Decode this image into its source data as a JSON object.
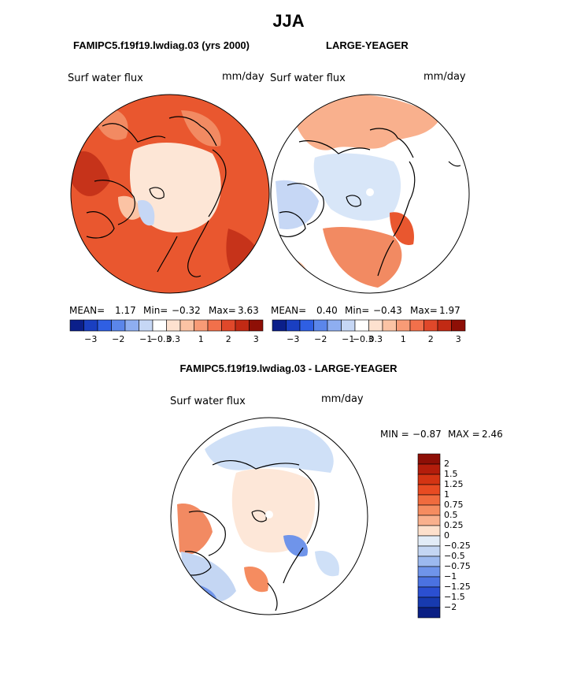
{
  "season": "JJA",
  "left_panel": {
    "title": "FAMIPC5.f19f19.lwdiag.03 (yrs 2000)",
    "field": "Surf water flux",
    "units": "mm/day",
    "mean_label": "MEAN=",
    "mean": "1.17",
    "min_label": "Min=",
    "min": "−0.32",
    "max_label": "Max=",
    "max": "3.63"
  },
  "right_panel": {
    "title": "LARGE-YEAGER",
    "field": "Surf water flux",
    "units": "mm/day",
    "mean_label": "MEAN=",
    "mean": "0.40",
    "min_label": "Min=",
    "min": "−0.43",
    "max_label": "Max=",
    "max": "1.97"
  },
  "top_colorbar": {
    "tick_labels": [
      "−3",
      "−2",
      "−1",
      "−0.3",
      "0.3",
      "1",
      "2",
      "3"
    ],
    "colors": [
      "#0b1f8a",
      "#1a3fc1",
      "#2f5fe3",
      "#5b86ea",
      "#8eaef0",
      "#c6d7f5",
      "#ffffff",
      "#fde1cf",
      "#fbc3a4",
      "#f89b76",
      "#f1704b",
      "#e0482a",
      "#c22a14",
      "#8e0f06"
    ]
  },
  "diff_panel": {
    "title": "FAMIPC5.f19f19.lwdiag.03 - LARGE-YEAGER",
    "field": "Surf water flux",
    "units": "mm/day",
    "min_label": "MIN =",
    "min": "−0.87",
    "max_label": "MAX =",
    "max": "2.46"
  },
  "diff_colorbar": {
    "labels": [
      "2",
      "1.5",
      "1.25",
      "1",
      "0.75",
      "0.5",
      "0.25",
      "0",
      "−0.25",
      "−0.5",
      "−0.75",
      "−1",
      "−1.25",
      "−1.5",
      "−2"
    ],
    "colors": [
      "#8e0f06",
      "#b41d0b",
      "#d43413",
      "#e84b22",
      "#f06b3e",
      "#f58c60",
      "#f9b08d",
      "#fde0cc",
      "#e2ecf7",
      "#c4d6f3",
      "#9cb9ef",
      "#6f94ea",
      "#4b72e1",
      "#2b4fd1",
      "#173aaf",
      "#0a1f84"
    ]
  },
  "colors": {
    "ocean_land_left": "#e9572f",
    "arctic_pale": "#fde6d6",
    "diff_pale": "#fde7d8",
    "diff_blue": "#cfe0f7"
  }
}
